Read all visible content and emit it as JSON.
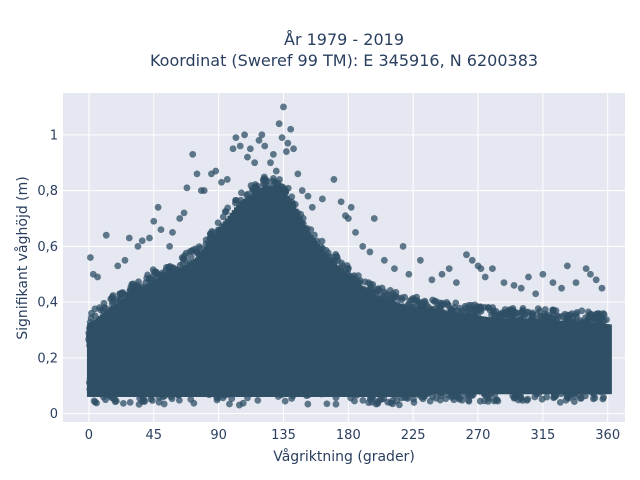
{
  "chart_data": {
    "type": "scatter",
    "title_line1": "År 1979 - 2019",
    "title_line2": "Koordinat (Sweref 99 TM): E 345916, N 6200383",
    "xlabel": "Vågriktning (grader)",
    "ylabel": "Signifikant våghöjd (m)",
    "xlim": [
      -18,
      372
    ],
    "ylim": [
      -0.03,
      1.15
    ],
    "x_ticks": [
      0,
      45,
      90,
      135,
      180,
      225,
      270,
      315,
      360
    ],
    "x_tick_labels": [
      "0",
      "45",
      "90",
      "135",
      "180",
      "225",
      "270",
      "315",
      "360"
    ],
    "y_ticks": [
      0,
      0.2,
      0.4,
      0.6,
      0.8,
      1
    ],
    "y_tick_labels": [
      "0",
      "0,2",
      "0,4",
      "0,6",
      "0,8",
      "1"
    ],
    "grid": true,
    "marker_color": "#2f4f65",
    "plot_bg": "#e5e8f0",
    "envelope": {
      "x": [
        0,
        15,
        30,
        45,
        60,
        75,
        90,
        105,
        120,
        130,
        140,
        150,
        165,
        180,
        195,
        210,
        225,
        240,
        255,
        270,
        285,
        300,
        315,
        330,
        345,
        360
      ],
      "lower": [
        0.03,
        0.03,
        0.03,
        0.03,
        0.03,
        0.03,
        0.03,
        0.03,
        0.03,
        0.03,
        0.03,
        0.03,
        0.03,
        0.03,
        0.03,
        0.03,
        0.03,
        0.04,
        0.04,
        0.04,
        0.04,
        0.04,
        0.04,
        0.04,
        0.04,
        0.04
      ],
      "upper": [
        0.36,
        0.42,
        0.47,
        0.52,
        0.55,
        0.6,
        0.7,
        0.8,
        0.85,
        0.86,
        0.8,
        0.7,
        0.6,
        0.53,
        0.47,
        0.44,
        0.42,
        0.41,
        0.4,
        0.39,
        0.38,
        0.38,
        0.38,
        0.37,
        0.37,
        0.36
      ]
    },
    "outliers": [
      [
        1,
        0.56
      ],
      [
        3,
        0.5
      ],
      [
        6,
        0.49
      ],
      [
        12,
        0.64
      ],
      [
        20,
        0.53
      ],
      [
        25,
        0.55
      ],
      [
        28,
        0.63
      ],
      [
        34,
        0.6
      ],
      [
        37,
        0.62
      ],
      [
        42,
        0.63
      ],
      [
        45,
        0.69
      ],
      [
        48,
        0.74
      ],
      [
        50,
        0.66
      ],
      [
        56,
        0.6
      ],
      [
        58,
        0.65
      ],
      [
        63,
        0.7
      ],
      [
        66,
        0.72
      ],
      [
        68,
        0.81
      ],
      [
        72,
        0.93
      ],
      [
        75,
        0.86
      ],
      [
        78,
        0.8
      ],
      [
        80,
        0.8
      ],
      [
        85,
        0.86
      ],
      [
        88,
        0.87
      ],
      [
        92,
        0.83
      ],
      [
        96,
        0.84
      ],
      [
        100,
        0.95
      ],
      [
        102,
        0.99
      ],
      [
        105,
        0.96
      ],
      [
        108,
        1.0
      ],
      [
        110,
        0.92
      ],
      [
        112,
        0.95
      ],
      [
        115,
        0.9
      ],
      [
        118,
        0.98
      ],
      [
        120,
        1.0
      ],
      [
        122,
        0.96
      ],
      [
        126,
        0.9
      ],
      [
        128,
        0.93
      ],
      [
        130,
        0.87
      ],
      [
        132,
        1.04
      ],
      [
        134,
        0.99
      ],
      [
        135,
        1.1
      ],
      [
        137,
        0.94
      ],
      [
        138,
        0.97
      ],
      [
        140,
        1.02
      ],
      [
        142,
        0.95
      ],
      [
        145,
        0.86
      ],
      [
        148,
        0.8
      ],
      [
        152,
        0.78
      ],
      [
        155,
        0.74
      ],
      [
        162,
        0.77
      ],
      [
        170,
        0.84
      ],
      [
        175,
        0.76
      ],
      [
        178,
        0.71
      ],
      [
        180,
        0.7
      ],
      [
        182,
        0.74
      ],
      [
        185,
        0.65
      ],
      [
        190,
        0.6
      ],
      [
        195,
        0.58
      ],
      [
        198,
        0.7
      ],
      [
        205,
        0.55
      ],
      [
        212,
        0.52
      ],
      [
        218,
        0.6
      ],
      [
        222,
        0.5
      ],
      [
        230,
        0.55
      ],
      [
        238,
        0.48
      ],
      [
        245,
        0.5
      ],
      [
        250,
        0.52
      ],
      [
        255,
        0.47
      ],
      [
        262,
        0.57
      ],
      [
        266,
        0.55
      ],
      [
        270,
        0.53
      ],
      [
        272,
        0.52
      ],
      [
        275,
        0.49
      ],
      [
        280,
        0.52
      ],
      [
        288,
        0.47
      ],
      [
        295,
        0.46
      ],
      [
        300,
        0.45
      ],
      [
        305,
        0.49
      ],
      [
        310,
        0.43
      ],
      [
        315,
        0.5
      ],
      [
        322,
        0.47
      ],
      [
        328,
        0.45
      ],
      [
        332,
        0.53
      ],
      [
        338,
        0.47
      ],
      [
        345,
        0.52
      ],
      [
        348,
        0.5
      ],
      [
        352,
        0.48
      ],
      [
        356,
        0.45
      ]
    ]
  }
}
